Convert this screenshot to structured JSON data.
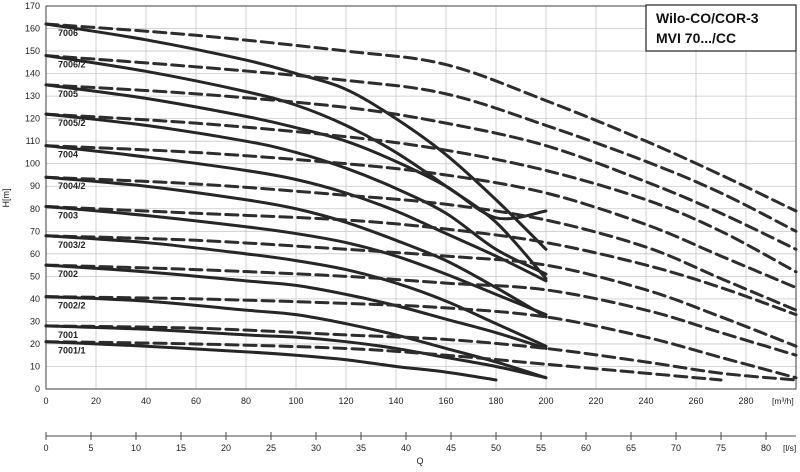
{
  "chart_data": {
    "type": "line",
    "title": [
      "Wilo-CO/COR-3",
      "MVI 70.../CC"
    ],
    "ylabel": "H[m]",
    "xlabel": "Q",
    "x_units": {
      "top": "[m³/h]",
      "bottom": "[l/s]"
    },
    "xlim": [
      0,
      300
    ],
    "ylim": [
      0,
      170
    ],
    "x_ticks": [
      0,
      20,
      40,
      60,
      80,
      100,
      120,
      140,
      160,
      180,
      200,
      220,
      240,
      260,
      280
    ],
    "y_ticks": [
      0,
      10,
      20,
      30,
      40,
      50,
      60,
      70,
      80,
      90,
      100,
      110,
      120,
      130,
      140,
      150,
      160,
      170
    ],
    "x2_ticks": [
      0,
      5,
      10,
      15,
      20,
      25,
      30,
      35,
      40,
      45,
      50,
      55,
      60,
      65,
      70,
      75,
      80
    ],
    "grid": true,
    "series": [
      {
        "name": "7006",
        "solid": [
          [
            0,
            162
          ],
          [
            40,
            155
          ],
          [
            80,
            146
          ],
          [
            100,
            140
          ],
          [
            120,
            133
          ],
          [
            140,
            120
          ],
          [
            160,
            104
          ],
          [
            180,
            84
          ],
          [
            200,
            62
          ]
        ],
        "dashed": [
          [
            0,
            162
          ],
          [
            60,
            157
          ],
          [
            120,
            150
          ],
          [
            160,
            144
          ],
          [
            200,
            128
          ],
          [
            240,
            110
          ],
          [
            270,
            95
          ],
          [
            300,
            79
          ]
        ]
      },
      {
        "name": "7006/2",
        "solid": [
          [
            0,
            148
          ],
          [
            40,
            141
          ],
          [
            80,
            132
          ],
          [
            100,
            126
          ],
          [
            120,
            117
          ],
          [
            140,
            105
          ],
          [
            160,
            90
          ],
          [
            180,
            74
          ],
          [
            200,
            49
          ]
        ],
        "dashed": [
          [
            0,
            148
          ],
          [
            60,
            143
          ],
          [
            120,
            137
          ],
          [
            160,
            131
          ],
          [
            200,
            117
          ],
          [
            240,
            101
          ],
          [
            270,
            87
          ],
          [
            300,
            70
          ]
        ]
      },
      {
        "name": "7005",
        "solid": [
          [
            0,
            135
          ],
          [
            40,
            129
          ],
          [
            80,
            121
          ],
          [
            100,
            116
          ],
          [
            120,
            110
          ],
          [
            140,
            101
          ],
          [
            160,
            90
          ],
          [
            180,
            76
          ],
          [
            200,
            79
          ]
        ],
        "dashed": [
          [
            0,
            135
          ],
          [
            60,
            131
          ],
          [
            120,
            125
          ],
          [
            160,
            118
          ],
          [
            200,
            108
          ],
          [
            240,
            92
          ],
          [
            270,
            78
          ],
          [
            300,
            62
          ]
        ]
      },
      {
        "name": "7005/2",
        "solid": [
          [
            0,
            122
          ],
          [
            40,
            117
          ],
          [
            80,
            110
          ],
          [
            100,
            105
          ],
          [
            120,
            98
          ],
          [
            140,
            89
          ],
          [
            160,
            78
          ],
          [
            180,
            62
          ],
          [
            200,
            51
          ]
        ],
        "dashed": [
          [
            0,
            122
          ],
          [
            60,
            118
          ],
          [
            120,
            112
          ],
          [
            160,
            106
          ],
          [
            200,
            97
          ],
          [
            240,
            84
          ],
          [
            270,
            70
          ],
          [
            300,
            52
          ]
        ]
      },
      {
        "name": "7004",
        "solid": [
          [
            0,
            108
          ],
          [
            40,
            103
          ],
          [
            80,
            97
          ],
          [
            100,
            93
          ],
          [
            120,
            87
          ],
          [
            140,
            79
          ],
          [
            160,
            69
          ],
          [
            180,
            59
          ],
          [
            200,
            48
          ]
        ],
        "dashed": [
          [
            0,
            108
          ],
          [
            60,
            105
          ],
          [
            120,
            100
          ],
          [
            160,
            95
          ],
          [
            200,
            87
          ],
          [
            240,
            73
          ],
          [
            270,
            59
          ],
          [
            300,
            45
          ]
        ]
      },
      {
        "name": "7004/2",
        "solid": [
          [
            0,
            94
          ],
          [
            40,
            90
          ],
          [
            80,
            84
          ],
          [
            100,
            80
          ],
          [
            120,
            74
          ],
          [
            140,
            66
          ],
          [
            160,
            57
          ],
          [
            180,
            45
          ],
          [
            200,
            32
          ]
        ],
        "dashed": [
          [
            0,
            94
          ],
          [
            60,
            91
          ],
          [
            120,
            86
          ],
          [
            160,
            82
          ],
          [
            200,
            75
          ],
          [
            240,
            63
          ],
          [
            270,
            49
          ],
          [
            300,
            35
          ]
        ]
      },
      {
        "name": "7003",
        "solid": [
          [
            0,
            81
          ],
          [
            40,
            77
          ],
          [
            80,
            72
          ],
          [
            100,
            69
          ],
          [
            120,
            65
          ],
          [
            140,
            59
          ],
          [
            160,
            51
          ],
          [
            180,
            42
          ],
          [
            200,
            33
          ]
        ],
        "dashed": [
          [
            0,
            81
          ],
          [
            60,
            78
          ],
          [
            120,
            75
          ],
          [
            160,
            71
          ],
          [
            200,
            65
          ],
          [
            240,
            55
          ],
          [
            270,
            45
          ],
          [
            300,
            33
          ]
        ]
      },
      {
        "name": "7003/2",
        "solid": [
          [
            0,
            68
          ],
          [
            40,
            65
          ],
          [
            80,
            60
          ],
          [
            100,
            57
          ],
          [
            120,
            53
          ],
          [
            140,
            47
          ],
          [
            160,
            39
          ],
          [
            180,
            29
          ],
          [
            200,
            19
          ]
        ],
        "dashed": [
          [
            0,
            68
          ],
          [
            60,
            66
          ],
          [
            120,
            62
          ],
          [
            160,
            59
          ],
          [
            200,
            55
          ],
          [
            240,
            44
          ],
          [
            270,
            32
          ],
          [
            300,
            19
          ]
        ]
      },
      {
        "name": "7002",
        "solid": [
          [
            0,
            55
          ],
          [
            40,
            52
          ],
          [
            80,
            48
          ],
          [
            100,
            46
          ],
          [
            120,
            42
          ],
          [
            140,
            37
          ],
          [
            160,
            31
          ],
          [
            180,
            25
          ],
          [
            200,
            18
          ]
        ],
        "dashed": [
          [
            0,
            55
          ],
          [
            60,
            53
          ],
          [
            120,
            50
          ],
          [
            160,
            47
          ],
          [
            200,
            44
          ],
          [
            240,
            35
          ],
          [
            270,
            25
          ],
          [
            300,
            15
          ]
        ]
      },
      {
        "name": "7002/2",
        "solid": [
          [
            0,
            41
          ],
          [
            40,
            39
          ],
          [
            80,
            35
          ],
          [
            100,
            33
          ],
          [
            120,
            29
          ],
          [
            140,
            24
          ],
          [
            160,
            18
          ],
          [
            180,
            12
          ],
          [
            200,
            5
          ]
        ],
        "dashed": [
          [
            0,
            41
          ],
          [
            60,
            40
          ],
          [
            120,
            38
          ],
          [
            160,
            36
          ],
          [
            200,
            32
          ],
          [
            240,
            23
          ],
          [
            270,
            14
          ],
          [
            300,
            5
          ]
        ]
      },
      {
        "name": "7001",
        "solid": [
          [
            0,
            28
          ],
          [
            40,
            26.5
          ],
          [
            80,
            24
          ],
          [
            100,
            23
          ],
          [
            120,
            21
          ],
          [
            140,
            18
          ],
          [
            160,
            14
          ],
          [
            180,
            10
          ],
          [
            200,
            5
          ]
        ],
        "dashed": [
          [
            0,
            28
          ],
          [
            60,
            27
          ],
          [
            120,
            24
          ],
          [
            160,
            22
          ],
          [
            200,
            18
          ],
          [
            240,
            12
          ],
          [
            270,
            7
          ],
          [
            300,
            4
          ]
        ]
      },
      {
        "name": "7001/1",
        "solid": [
          [
            0,
            21
          ],
          [
            40,
            19
          ],
          [
            80,
            16.5
          ],
          [
            100,
            15
          ],
          [
            120,
            13
          ],
          [
            140,
            10
          ],
          [
            160,
            7.5
          ],
          [
            180,
            4
          ]
        ],
        "dashed": [
          [
            0,
            21
          ],
          [
            60,
            20
          ],
          [
            120,
            18
          ],
          [
            160,
            15
          ],
          [
            200,
            11
          ],
          [
            240,
            7
          ],
          [
            270,
            4
          ]
        ]
      }
    ]
  }
}
